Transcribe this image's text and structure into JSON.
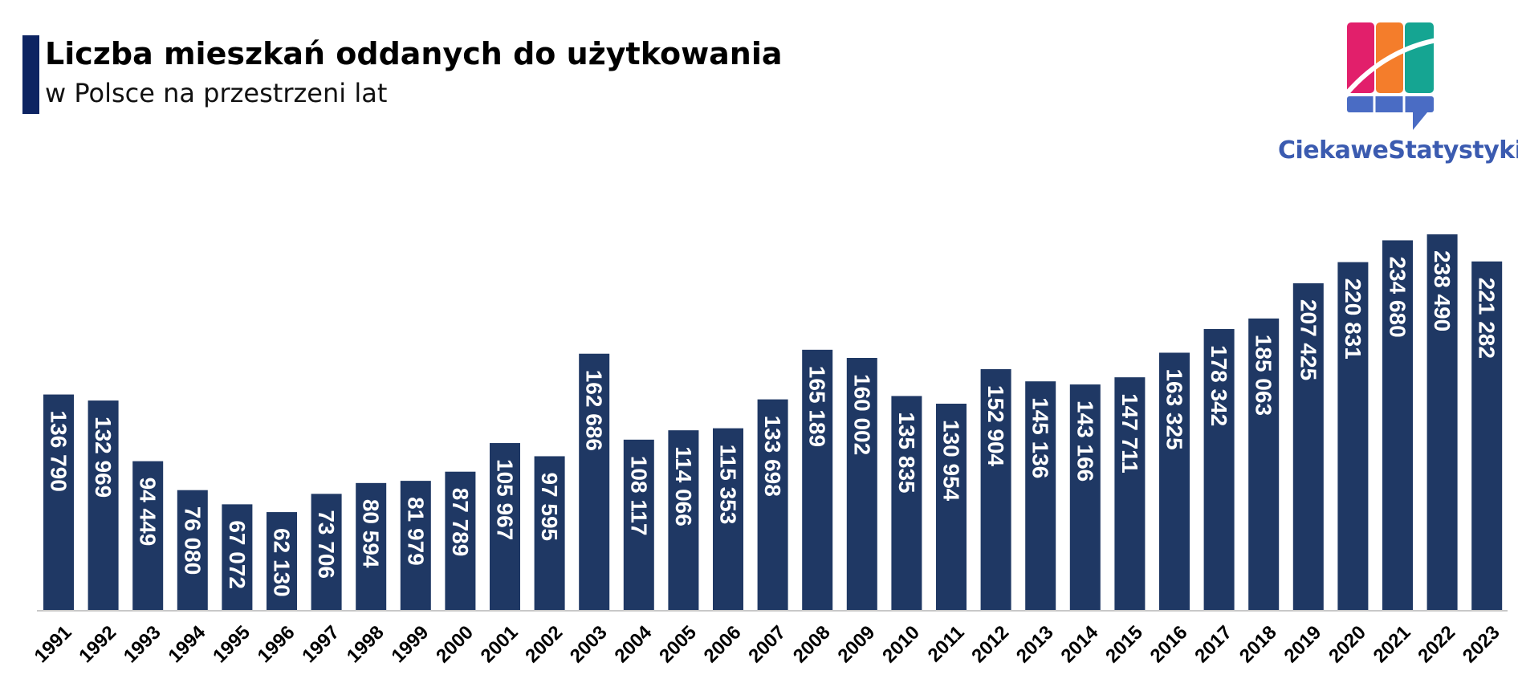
{
  "header": {
    "title": "Liczba mieszkań oddanych do użytkowania",
    "subtitle": "w Polsce na przestrzeni lat"
  },
  "logo": {
    "text": "CiekaweStatystyki.pl",
    "colors": [
      "#e21f6b",
      "#f47d2b",
      "#15a592",
      "#4a6cc4"
    ]
  },
  "colors": {
    "bar": "#1f3864",
    "bar_label": "#ffffff",
    "axis": "#c8c8c8",
    "tick_label": "#000000",
    "title_accent": "#0d2462"
  },
  "chart_data": {
    "type": "bar",
    "title": "Liczba mieszkań oddanych do użytkowania",
    "subtitle": "w Polsce na przestrzeni lat",
    "xlabel": "",
    "ylabel": "",
    "ylim": [
      0,
      240000
    ],
    "grid": false,
    "categories": [
      "1991",
      "1992",
      "1993",
      "1994",
      "1995",
      "1996",
      "1997",
      "1998",
      "1999",
      "2000",
      "2001",
      "2002",
      "2003",
      "2004",
      "2005",
      "2006",
      "2007",
      "2008",
      "2009",
      "2010",
      "2011",
      "2012",
      "2013",
      "2014",
      "2015",
      "2016",
      "2017",
      "2018",
      "2019",
      "2020",
      "2021",
      "2022",
      "2023"
    ],
    "values": [
      136790,
      132969,
      94449,
      76080,
      67072,
      62130,
      73706,
      80594,
      81979,
      87789,
      105967,
      97595,
      162686,
      108117,
      114066,
      115353,
      133698,
      165189,
      160002,
      135835,
      130954,
      152904,
      145136,
      143166,
      147711,
      163325,
      178342,
      185063,
      207425,
      220831,
      234680,
      238490,
      221282
    ],
    "data_labels": [
      "136 790",
      "132 969",
      "94 449",
      "76 080",
      "67 072",
      "62 130",
      "73 706",
      "80 594",
      "81 979",
      "87 789",
      "105 967",
      "97 595",
      "162 686",
      "108 117",
      "114 066",
      "115 353",
      "133 698",
      "165 189",
      "160 002",
      "135 835",
      "130 954",
      "152 904",
      "145 136",
      "143 166",
      "147 711",
      "163 325",
      "178 342",
      "185 063",
      "207 425",
      "220 831",
      "234 680",
      "238 490",
      "221 282"
    ]
  }
}
